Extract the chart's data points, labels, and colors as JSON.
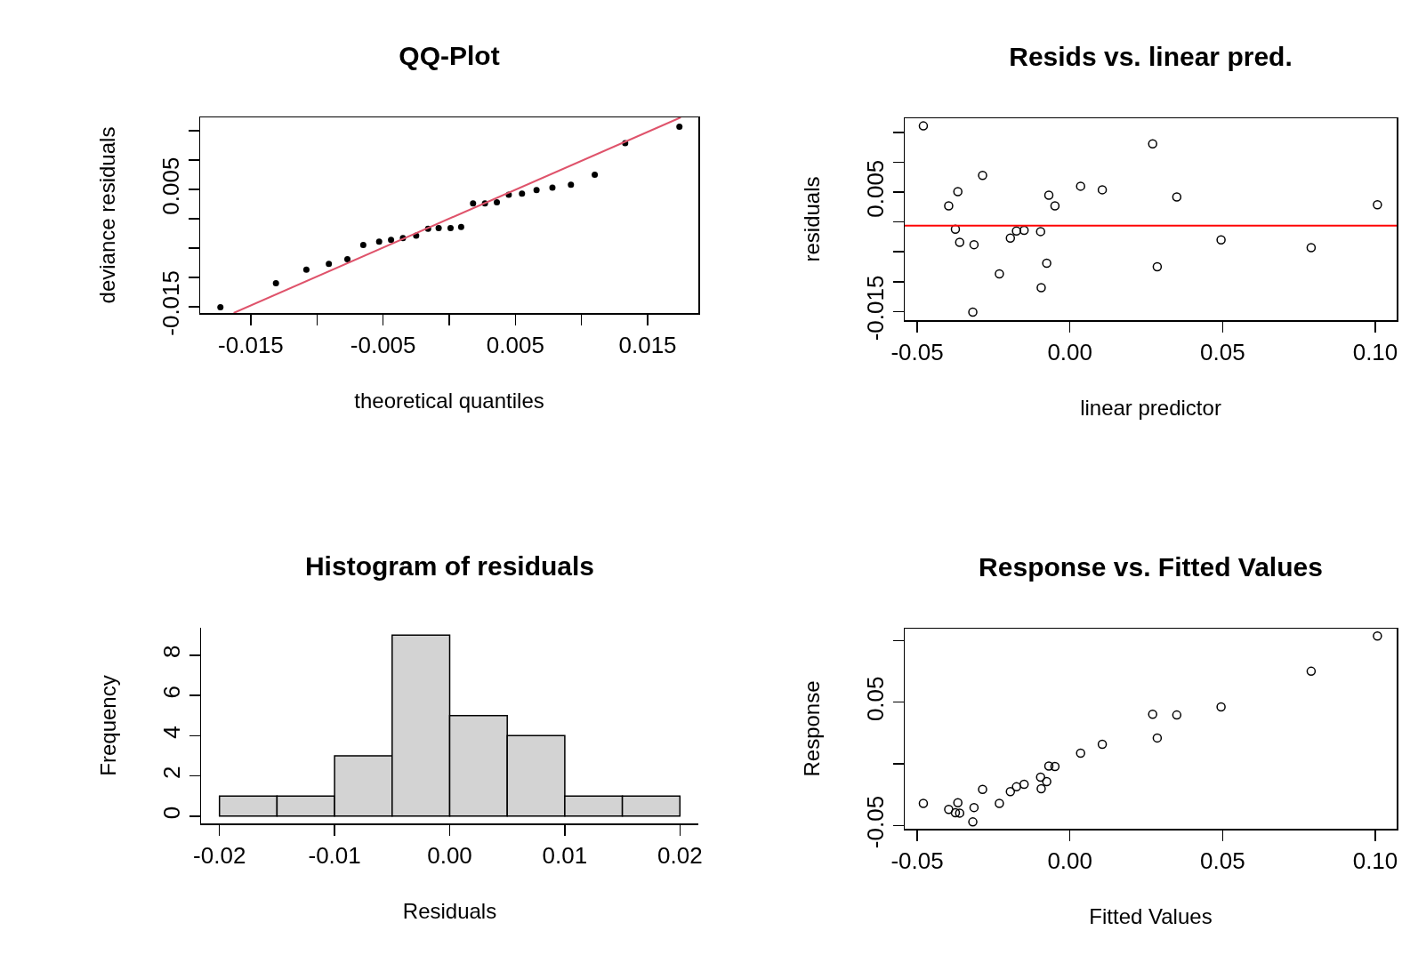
{
  "chart_data": [
    {
      "type": "scatter",
      "title": "QQ-Plot",
      "xlabel": "theoretical quantiles",
      "ylabel": "deviance residuals",
      "xlim": [
        -0.01883,
        0.01883
      ],
      "ylim": [
        -0.0161,
        0.0173
      ],
      "xticks": [
        -0.015,
        {
          "value": -0.01,
          "label": null
        },
        -0.005,
        {
          "value": 0,
          "label": null
        },
        0.005,
        {
          "value": 0.01,
          "label": null
        },
        0.015
      ],
      "yticks": [
        -0.015,
        {
          "value": -0.01,
          "label": null
        },
        {
          "value": -0.005,
          "label": null
        },
        {
          "value": 0,
          "label": null
        },
        0.005,
        {
          "value": 0.01,
          "label": null
        },
        {
          "value": 0.015,
          "label": null
        }
      ],
      "series": [
        {
          "color": "#000000",
          "marker": "circle",
          "x": [
            -0.0173,
            -0.0131,
            -0.0108,
            -0.0091,
            -0.0077,
            -0.0065,
            -0.0053,
            -0.0044,
            -0.0035,
            -0.0025,
            -0.0016,
            -0.0008,
            0.0001,
            0.0009,
            0.0018,
            0.0027,
            0.0036,
            0.0045,
            0.0055,
            0.0066,
            0.0078,
            0.0092,
            0.011,
            0.0133,
            0.0174
          ],
          "values": [
            -0.0151,
            -0.011,
            -0.0087,
            -0.0077,
            -0.0069,
            -0.0045,
            -0.0039,
            -0.0036,
            -0.0033,
            -0.0029,
            -0.0017,
            -0.0016,
            -0.0016,
            -0.0014,
            0.0026,
            0.0026,
            0.0028,
            0.0041,
            0.0043,
            0.0049,
            0.0053,
            0.0058,
            0.0075,
            0.0129,
            0.0157
          ]
        },
        {
          "type": "line",
          "color": "#df536b",
          "x": [
            -0.0163,
            0.0175
          ],
          "values": [
            -0.0161,
            0.0173
          ]
        }
      ]
    },
    {
      "type": "scatter",
      "title": "Resids vs. linear pred.",
      "xlabel": "linear predictor",
      "ylabel": "residuals",
      "marker": "circle",
      "xlim": [
        -0.0541,
        0.107
      ],
      "ylim": [
        -0.01644,
        0.01738
      ],
      "xticks": [
        -0.05,
        {
          "value": 0,
          "label": "0.00"
        },
        0.05,
        {
          "value": 0.1,
          "label": "0.10"
        }
      ],
      "yticks": [
        -0.015,
        {
          "value": -0.01,
          "label": null
        },
        {
          "value": -0.005,
          "label": null
        },
        {
          "value": 0,
          "label": null
        },
        0.005,
        {
          "value": 0.01,
          "label": null
        },
        {
          "value": 0.015,
          "label": null
        }
      ],
      "ref_lines": [
        {
          "axis": "y",
          "value": -0.0006,
          "color": "#ff0000"
        }
      ],
      "series": [
        {
          "color": "#000000",
          "x": [
            -0.048,
            -0.0397,
            -0.0367,
            -0.0375,
            -0.0361,
            -0.0314,
            -0.0318,
            -0.0286,
            -0.0231,
            -0.0195,
            -0.0175,
            -0.015,
            -0.0096,
            -0.0094,
            -0.0076,
            -0.0069,
            -0.0049,
            0.0035,
            0.0106,
            0.0271,
            0.0286,
            0.035,
            0.0495,
            0.079,
            0.1007
          ],
          "values": [
            0.0161,
            0.0027,
            0.0051,
            -0.0012,
            -0.0034,
            -0.0038,
            -0.0151,
            0.0078,
            -0.0087,
            -0.0027,
            -0.0015,
            -0.0014,
            -0.0016,
            -0.011,
            -0.0069,
            0.0045,
            0.0027,
            0.006,
            0.0054,
            0.0131,
            -0.0075,
            0.0042,
            -0.003,
            -0.0043,
            0.0029
          ]
        }
      ]
    },
    {
      "type": "histogram",
      "title": "Histogram of residuals",
      "xlabel": "Residuals",
      "ylabel": "Frequency",
      "color": "#d3d3d3",
      "bins": [
        -0.02,
        -0.015,
        -0.01,
        -0.005,
        0,
        0.005,
        0.01,
        0.015,
        0.02
      ],
      "values": [
        1,
        1,
        3,
        9,
        5,
        4,
        1,
        1
      ],
      "xlim": [
        -0.0216,
        0.0216
      ],
      "ylim": [
        -0.36,
        9.36
      ],
      "xticks": [
        -0.02,
        -0.01,
        {
          "value": 0,
          "label": "0.00"
        },
        0.01,
        0.02
      ],
      "yticks": [
        0,
        2,
        4,
        6,
        8
      ]
    },
    {
      "type": "scatter",
      "title": "Response vs. Fitted Values",
      "xlabel": "Fitted Values",
      "ylabel": "Response",
      "marker": "circle",
      "xlim": [
        -0.0541,
        0.107
      ],
      "ylim": [
        -0.0526,
        0.1096
      ],
      "xticks": [
        -0.05,
        {
          "value": 0,
          "label": "0.00"
        },
        0.05,
        {
          "value": 0.1,
          "label": "0.10"
        }
      ],
      "yticks": [
        -0.05,
        {
          "value": 0,
          "label": null
        },
        0.05,
        {
          "value": 0.1,
          "label": null
        }
      ],
      "series": [
        {
          "color": "#000000",
          "x": [
            -0.048,
            -0.0397,
            -0.0367,
            -0.0375,
            -0.0361,
            -0.0314,
            -0.0318,
            -0.0286,
            -0.0231,
            -0.0195,
            -0.0175,
            -0.015,
            -0.0096,
            -0.0094,
            -0.0076,
            -0.0069,
            -0.0049,
            0.0035,
            0.0106,
            0.0271,
            0.0286,
            0.035,
            0.0495,
            0.079,
            0.1007
          ],
          "values": [
            -0.0321,
            -0.0369,
            -0.0315,
            -0.0396,
            -0.0399,
            -0.0354,
            -0.0471,
            -0.0207,
            -0.0321,
            -0.0225,
            -0.0186,
            -0.0165,
            -0.0108,
            -0.0201,
            -0.0144,
            -0.0018,
            -0.0021,
            0.0087,
            0.0159,
            0.0402,
            0.021,
            0.0396,
            0.0462,
            0.0751,
            0.1036
          ]
        }
      ]
    }
  ]
}
